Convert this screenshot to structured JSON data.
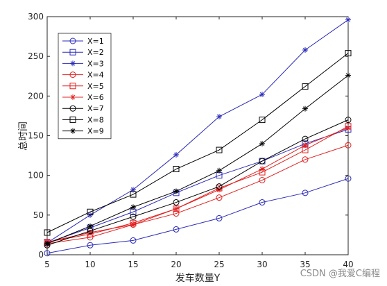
{
  "chart_data": {
    "type": "line",
    "xlabel": "发车数量Y",
    "ylabel": "总时间",
    "x": [
      5,
      10,
      15,
      20,
      25,
      30,
      35,
      40
    ],
    "xlim": [
      5,
      40
    ],
    "ylim": [
      0,
      300
    ],
    "xticks": [
      5,
      10,
      15,
      20,
      25,
      30,
      35,
      40
    ],
    "yticks": [
      0,
      50,
      100,
      150,
      200,
      250,
      300
    ],
    "grid": false,
    "legend_position": "top-left",
    "series": [
      {
        "name": "X=1",
        "color": "#2b2bb8",
        "marker": "circle",
        "values": [
          2,
          12,
          18,
          32,
          46,
          66,
          78,
          96
        ]
      },
      {
        "name": "X=2",
        "color": "#2b2bb8",
        "marker": "square",
        "values": [
          15,
          34,
          54,
          78,
          100,
          118,
          140,
          158
        ]
      },
      {
        "name": "X=3",
        "color": "#2b2bb8",
        "marker": "star",
        "values": [
          15,
          50,
          82,
          126,
          174,
          202,
          258,
          296
        ]
      },
      {
        "name": "X=4",
        "color": "#e02020",
        "marker": "circle",
        "values": [
          14,
          22,
          38,
          52,
          72,
          94,
          120,
          138
        ]
      },
      {
        "name": "X=5",
        "color": "#e02020",
        "marker": "square",
        "values": [
          16,
          26,
          40,
          58,
          84,
          104,
          132,
          162
        ]
      },
      {
        "name": "X=6",
        "color": "#e02020",
        "marker": "star",
        "values": [
          16,
          28,
          38,
          58,
          82,
          108,
          138,
          160
        ]
      },
      {
        "name": "X=7",
        "color": "#000000",
        "marker": "circle",
        "values": [
          12,
          30,
          48,
          66,
          86,
          118,
          146,
          170
        ]
      },
      {
        "name": "X=8",
        "color": "#000000",
        "marker": "square",
        "values": [
          28,
          54,
          76,
          108,
          132,
          170,
          212,
          254
        ]
      },
      {
        "name": "X=9",
        "color": "#000000",
        "marker": "star",
        "values": [
          14,
          36,
          60,
          80,
          106,
          140,
          184,
          226
        ]
      }
    ]
  },
  "watermark": "CSDN @我爱C编程"
}
